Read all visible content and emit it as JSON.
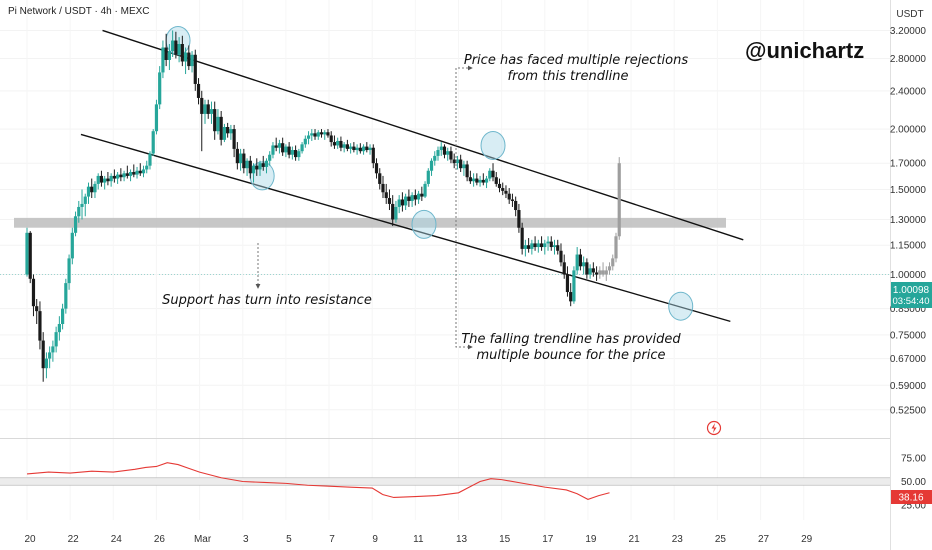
{
  "header": {
    "title": "Pi Network / USDT · 4h · MEXC"
  },
  "watermark": "@unichartz",
  "annotations": {
    "rejections_line1": "Price has faced multiple rejections",
    "rejections_line2": "from this trendline",
    "support": "Support has turn into resistance",
    "bounce_line1": "The falling trendline has provided",
    "bounce_line2": "multiple bounce for the price"
  },
  "colors": {
    "up": "#26a69a",
    "down": "#1a1a1a",
    "projection": "#9e9e9e",
    "rsi_line": "#e53935",
    "zone": "#bdbdbd",
    "circle": "#a8d8e6",
    "price_badge": "#26a69a",
    "rsi_badge": "#e53935"
  },
  "chart_data": {
    "type": "candlestick",
    "title": "Pi Network / USDT · 4h · MEXC",
    "y_axis": {
      "unit": "USDT",
      "scale": "log",
      "ticks": [
        "3.20000",
        "2.80000",
        "2.40000",
        "2.00000",
        "1.70000",
        "1.50000",
        "1.30000",
        "1.15000",
        "1.00000",
        "0.85000",
        "0.75000",
        "0.67000",
        "0.59000",
        "0.52500"
      ],
      "range": [
        0.5,
        3.3
      ]
    },
    "x_axis": {
      "ticks": [
        "20",
        "22",
        "24",
        "26",
        "Mar",
        "3",
        "5",
        "7",
        "9",
        "11",
        "13",
        "15",
        "17",
        "19",
        "21",
        "23",
        "25",
        "27",
        "29"
      ],
      "range": [
        0,
        40
      ]
    },
    "current_price": {
      "value": "1.00098",
      "countdown": "03:54:40"
    },
    "support_resistance_zone": [
      1.25,
      1.31
    ],
    "trendlines": [
      {
        "name": "upper",
        "from": [
          3.5,
          3.2
        ],
        "to": [
          33.2,
          1.18
        ]
      },
      {
        "name": "lower",
        "from": [
          2.5,
          1.95
        ],
        "to": [
          32.6,
          0.8
        ]
      }
    ],
    "touch_points": [
      {
        "t": 7.0,
        "price": 3.05
      },
      {
        "t": 10.9,
        "price": 1.6
      },
      {
        "t": 18.4,
        "price": 1.27
      },
      {
        "t": 21.6,
        "price": 1.85
      },
      {
        "t": 30.3,
        "price": 0.86
      }
    ],
    "candles_ohlc": [
      [
        0.0,
        1.0,
        1.25,
        0.99,
        1.22
      ],
      [
        0.15,
        1.22,
        1.23,
        0.96,
        0.98
      ],
      [
        0.3,
        0.98,
        1.0,
        0.82,
        0.86
      ],
      [
        0.45,
        0.86,
        0.89,
        0.79,
        0.84
      ],
      [
        0.6,
        0.84,
        0.88,
        0.7,
        0.73
      ],
      [
        0.75,
        0.73,
        0.76,
        0.6,
        0.64
      ],
      [
        0.9,
        0.64,
        0.69,
        0.61,
        0.67
      ],
      [
        1.05,
        0.67,
        0.71,
        0.64,
        0.69
      ],
      [
        1.2,
        0.69,
        0.73,
        0.66,
        0.71
      ],
      [
        1.35,
        0.71,
        0.78,
        0.69,
        0.76
      ],
      [
        1.5,
        0.76,
        0.82,
        0.73,
        0.79
      ],
      [
        1.65,
        0.79,
        0.87,
        0.77,
        0.85
      ],
      [
        1.8,
        0.85,
        0.98,
        0.83,
        0.96
      ],
      [
        1.95,
        0.96,
        1.1,
        0.93,
        1.08
      ],
      [
        2.1,
        1.08,
        1.25,
        1.05,
        1.22
      ],
      [
        2.25,
        1.22,
        1.35,
        1.2,
        1.32
      ],
      [
        2.4,
        1.32,
        1.42,
        1.28,
        1.38
      ],
      [
        2.55,
        1.38,
        1.5,
        1.3,
        1.4
      ],
      [
        2.7,
        1.4,
        1.47,
        1.32,
        1.45
      ],
      [
        2.85,
        1.45,
        1.55,
        1.4,
        1.52
      ],
      [
        3.0,
        1.52,
        1.58,
        1.44,
        1.48
      ],
      [
        3.15,
        1.48,
        1.56,
        1.44,
        1.54
      ],
      [
        3.3,
        1.54,
        1.62,
        1.5,
        1.6
      ],
      [
        3.45,
        1.6,
        1.64,
        1.52,
        1.55
      ],
      [
        3.6,
        1.55,
        1.6,
        1.5,
        1.58
      ],
      [
        3.75,
        1.58,
        1.63,
        1.53,
        1.56
      ],
      [
        3.9,
        1.56,
        1.62,
        1.52,
        1.6
      ],
      [
        4.05,
        1.6,
        1.65,
        1.55,
        1.58
      ],
      [
        4.2,
        1.58,
        1.63,
        1.54,
        1.61
      ],
      [
        4.35,
        1.61,
        1.66,
        1.56,
        1.59
      ],
      [
        4.5,
        1.59,
        1.64,
        1.56,
        1.62
      ],
      [
        4.65,
        1.62,
        1.68,
        1.58,
        1.6
      ],
      [
        4.8,
        1.6,
        1.65,
        1.56,
        1.63
      ],
      [
        4.95,
        1.63,
        1.69,
        1.59,
        1.61
      ],
      [
        5.1,
        1.61,
        1.67,
        1.58,
        1.64
      ],
      [
        5.25,
        1.64,
        1.7,
        1.6,
        1.62
      ],
      [
        5.4,
        1.62,
        1.68,
        1.59,
        1.65
      ],
      [
        5.55,
        1.65,
        1.72,
        1.62,
        1.68
      ],
      [
        5.7,
        1.68,
        1.8,
        1.65,
        1.78
      ],
      [
        5.85,
        1.78,
        2.0,
        1.76,
        1.98
      ],
      [
        6.0,
        1.98,
        2.3,
        1.95,
        2.25
      ],
      [
        6.15,
        2.25,
        2.7,
        2.2,
        2.62
      ],
      [
        6.3,
        2.62,
        3.05,
        2.55,
        2.95
      ],
      [
        6.45,
        2.95,
        3.15,
        2.7,
        2.78
      ],
      [
        6.6,
        2.78,
        3.0,
        2.65,
        2.9
      ],
      [
        6.75,
        2.9,
        3.2,
        2.82,
        3.05
      ],
      [
        6.9,
        3.05,
        3.18,
        2.8,
        2.85
      ],
      [
        7.05,
        2.85,
        3.1,
        2.75,
        3.0
      ],
      [
        7.2,
        3.0,
        3.12,
        2.7,
        2.76
      ],
      [
        7.35,
        2.76,
        2.95,
        2.6,
        2.88
      ],
      [
        7.5,
        2.88,
        2.98,
        2.65,
        2.7
      ],
      [
        7.65,
        2.7,
        2.9,
        2.62,
        2.85
      ],
      [
        7.8,
        2.85,
        2.92,
        2.4,
        2.48
      ],
      [
        7.95,
        2.48,
        2.55,
        2.25,
        2.32
      ],
      [
        8.1,
        2.32,
        2.4,
        1.8,
        2.15
      ],
      [
        8.25,
        2.15,
        2.3,
        2.05,
        2.25
      ],
      [
        8.4,
        2.25,
        2.3,
        2.1,
        2.15
      ],
      [
        8.55,
        2.15,
        2.28,
        2.05,
        2.2
      ],
      [
        8.7,
        2.2,
        2.28,
        1.9,
        1.98
      ],
      [
        8.85,
        1.98,
        2.2,
        1.95,
        2.12
      ],
      [
        9.0,
        2.12,
        2.18,
        1.85,
        1.9
      ],
      [
        9.15,
        1.9,
        2.05,
        1.88,
        2.02
      ],
      [
        9.3,
        2.02,
        2.06,
        1.92,
        1.96
      ],
      [
        9.45,
        1.96,
        2.04,
        1.9,
        2.0
      ],
      [
        9.6,
        2.0,
        2.04,
        1.75,
        1.82
      ],
      [
        9.75,
        1.82,
        1.88,
        1.65,
        1.7
      ],
      [
        9.9,
        1.7,
        1.82,
        1.64,
        1.78
      ],
      [
        10.05,
        1.78,
        1.82,
        1.62,
        1.66
      ],
      [
        10.2,
        1.66,
        1.74,
        1.6,
        1.72
      ],
      [
        10.35,
        1.72,
        1.76,
        1.58,
        1.62
      ],
      [
        10.5,
        1.62,
        1.7,
        1.55,
        1.68
      ],
      [
        10.65,
        1.68,
        1.74,
        1.6,
        1.65
      ],
      [
        10.8,
        1.65,
        1.72,
        1.6,
        1.7
      ],
      [
        10.95,
        1.7,
        1.76,
        1.64,
        1.67
      ],
      [
        11.1,
        1.67,
        1.74,
        1.62,
        1.72
      ],
      [
        11.25,
        1.72,
        1.8,
        1.68,
        1.77
      ],
      [
        11.4,
        1.77,
        1.88,
        1.74,
        1.85
      ],
      [
        11.55,
        1.85,
        1.92,
        1.8,
        1.83
      ],
      [
        11.7,
        1.83,
        1.9,
        1.78,
        1.87
      ],
      [
        11.85,
        1.87,
        1.92,
        1.76,
        1.79
      ],
      [
        12.0,
        1.79,
        1.86,
        1.75,
        1.84
      ],
      [
        12.15,
        1.84,
        1.88,
        1.74,
        1.77
      ],
      [
        12.3,
        1.77,
        1.84,
        1.73,
        1.81
      ],
      [
        12.45,
        1.81,
        1.85,
        1.72,
        1.75
      ],
      [
        12.6,
        1.75,
        1.82,
        1.72,
        1.8
      ],
      [
        12.75,
        1.8,
        1.88,
        1.78,
        1.86
      ],
      [
        12.9,
        1.86,
        1.94,
        1.83,
        1.91
      ],
      [
        13.05,
        1.91,
        1.98,
        1.86,
        1.94
      ],
      [
        13.2,
        1.94,
        2.0,
        1.89,
        1.96
      ],
      [
        13.35,
        1.96,
        2.0,
        1.9,
        1.93
      ],
      [
        13.5,
        1.93,
        1.99,
        1.9,
        1.97
      ],
      [
        13.65,
        1.97,
        2.0,
        1.92,
        1.95
      ],
      [
        13.8,
        1.95,
        1.99,
        1.9,
        1.97
      ],
      [
        13.95,
        1.97,
        2.0,
        1.92,
        1.94
      ],
      [
        14.1,
        1.94,
        1.98,
        1.84,
        1.88
      ],
      [
        14.25,
        1.88,
        1.94,
        1.82,
        1.85
      ],
      [
        14.4,
        1.85,
        1.92,
        1.82,
        1.89
      ],
      [
        14.55,
        1.89,
        1.93,
        1.8,
        1.83
      ],
      [
        14.7,
        1.83,
        1.88,
        1.79,
        1.86
      ],
      [
        14.85,
        1.86,
        1.9,
        1.8,
        1.82
      ],
      [
        15.0,
        1.82,
        1.87,
        1.78,
        1.84
      ],
      [
        15.15,
        1.84,
        1.88,
        1.79,
        1.81
      ],
      [
        15.3,
        1.81,
        1.86,
        1.77,
        1.83
      ],
      [
        15.45,
        1.83,
        1.87,
        1.78,
        1.8
      ],
      [
        15.6,
        1.8,
        1.86,
        1.77,
        1.84
      ],
      [
        15.75,
        1.84,
        1.88,
        1.79,
        1.81
      ],
      [
        15.9,
        1.81,
        1.86,
        1.77,
        1.83
      ],
      [
        16.05,
        1.83,
        1.86,
        1.66,
        1.7
      ],
      [
        16.2,
        1.7,
        1.74,
        1.58,
        1.62
      ],
      [
        16.35,
        1.62,
        1.66,
        1.5,
        1.54
      ],
      [
        16.5,
        1.54,
        1.6,
        1.44,
        1.48
      ],
      [
        16.65,
        1.48,
        1.54,
        1.4,
        1.44
      ],
      [
        16.8,
        1.44,
        1.5,
        1.36,
        1.4
      ],
      [
        16.95,
        1.4,
        1.46,
        1.26,
        1.3
      ],
      [
        17.1,
        1.3,
        1.42,
        1.28,
        1.38
      ],
      [
        17.25,
        1.38,
        1.46,
        1.34,
        1.43
      ],
      [
        17.4,
        1.43,
        1.48,
        1.35,
        1.39
      ],
      [
        17.55,
        1.39,
        1.47,
        1.36,
        1.45
      ],
      [
        17.7,
        1.45,
        1.5,
        1.38,
        1.42
      ],
      [
        17.85,
        1.42,
        1.48,
        1.38,
        1.46
      ],
      [
        18.0,
        1.46,
        1.5,
        1.39,
        1.43
      ],
      [
        18.15,
        1.43,
        1.49,
        1.4,
        1.47
      ],
      [
        18.3,
        1.47,
        1.52,
        1.42,
        1.45
      ],
      [
        18.45,
        1.45,
        1.56,
        1.44,
        1.54
      ],
      [
        18.6,
        1.54,
        1.66,
        1.52,
        1.64
      ],
      [
        18.75,
        1.64,
        1.74,
        1.6,
        1.72
      ],
      [
        18.9,
        1.72,
        1.8,
        1.68,
        1.76
      ],
      [
        19.05,
        1.76,
        1.84,
        1.72,
        1.81
      ],
      [
        19.2,
        1.81,
        1.88,
        1.76,
        1.84
      ],
      [
        19.35,
        1.84,
        1.86,
        1.74,
        1.77
      ],
      [
        19.5,
        1.77,
        1.83,
        1.72,
        1.8
      ],
      [
        19.65,
        1.8,
        1.84,
        1.7,
        1.73
      ],
      [
        19.8,
        1.73,
        1.78,
        1.66,
        1.7
      ],
      [
        19.95,
        1.7,
        1.76,
        1.65,
        1.73
      ],
      [
        20.1,
        1.73,
        1.77,
        1.63,
        1.66
      ],
      [
        20.25,
        1.66,
        1.72,
        1.6,
        1.69
      ],
      [
        20.4,
        1.69,
        1.72,
        1.56,
        1.59
      ],
      [
        20.55,
        1.59,
        1.64,
        1.54,
        1.56
      ],
      [
        20.7,
        1.56,
        1.62,
        1.52,
        1.58
      ],
      [
        20.85,
        1.58,
        1.62,
        1.53,
        1.55
      ],
      [
        21.0,
        1.55,
        1.6,
        1.52,
        1.57
      ],
      [
        21.15,
        1.57,
        1.62,
        1.53,
        1.55
      ],
      [
        21.3,
        1.55,
        1.6,
        1.51,
        1.58
      ],
      [
        21.45,
        1.58,
        1.66,
        1.56,
        1.64
      ],
      [
        21.6,
        1.64,
        1.7,
        1.56,
        1.59
      ],
      [
        21.75,
        1.59,
        1.63,
        1.52,
        1.54
      ],
      [
        21.9,
        1.54,
        1.58,
        1.48,
        1.51
      ],
      [
        22.05,
        1.51,
        1.55,
        1.46,
        1.49
      ],
      [
        22.2,
        1.49,
        1.53,
        1.44,
        1.47
      ],
      [
        22.35,
        1.47,
        1.51,
        1.4,
        1.43
      ],
      [
        22.5,
        1.43,
        1.47,
        1.38,
        1.42
      ],
      [
        22.65,
        1.42,
        1.45,
        1.32,
        1.36
      ],
      [
        22.8,
        1.36,
        1.4,
        1.22,
        1.25
      ],
      [
        22.95,
        1.25,
        1.28,
        1.1,
        1.13
      ],
      [
        23.1,
        1.13,
        1.18,
        1.09,
        1.15
      ],
      [
        23.25,
        1.15,
        1.19,
        1.11,
        1.13
      ],
      [
        23.4,
        1.13,
        1.18,
        1.1,
        1.16
      ],
      [
        23.55,
        1.16,
        1.2,
        1.12,
        1.14
      ],
      [
        23.7,
        1.14,
        1.18,
        1.11,
        1.16
      ],
      [
        23.85,
        1.16,
        1.2,
        1.12,
        1.14
      ],
      [
        24.0,
        1.14,
        1.18,
        1.1,
        1.16
      ],
      [
        24.15,
        1.16,
        1.2,
        1.12,
        1.17
      ],
      [
        24.3,
        1.17,
        1.2,
        1.12,
        1.14
      ],
      [
        24.45,
        1.14,
        1.18,
        1.1,
        1.15
      ],
      [
        24.6,
        1.15,
        1.18,
        1.1,
        1.12
      ],
      [
        24.75,
        1.12,
        1.16,
        1.04,
        1.06
      ],
      [
        24.9,
        1.06,
        1.1,
        0.98,
        1.0
      ],
      [
        25.05,
        1.0,
        1.04,
        0.9,
        0.92
      ],
      [
        25.2,
        0.92,
        0.96,
        0.86,
        0.88
      ],
      [
        25.35,
        0.88,
        1.04,
        0.87,
        1.02
      ],
      [
        25.5,
        1.02,
        1.14,
        1.0,
        1.1
      ],
      [
        25.65,
        1.1,
        1.13,
        1.02,
        1.04
      ],
      [
        25.8,
        1.04,
        1.09,
        1.0,
        1.06
      ],
      [
        25.95,
        1.06,
        1.08,
        0.98,
        1.0
      ],
      [
        26.1,
        1.0,
        1.05,
        0.98,
        1.03
      ],
      [
        26.25,
        1.03,
        1.06,
        0.99,
        1.01
      ],
      [
        26.4,
        1.01,
        1.04,
        0.97,
        1.0
      ]
    ],
    "projection_ohlc": [
      [
        26.55,
        1.0,
        1.04,
        0.98,
        1.02
      ],
      [
        26.7,
        1.02,
        1.06,
        0.99,
        1.0
      ],
      [
        26.85,
        1.0,
        1.04,
        0.97,
        1.02
      ],
      [
        27.0,
        1.02,
        1.06,
        1.0,
        1.04
      ],
      [
        27.15,
        1.04,
        1.1,
        1.02,
        1.08
      ],
      [
        27.3,
        1.08,
        1.22,
        1.06,
        1.2
      ],
      [
        27.45,
        1.2,
        1.75,
        1.18,
        1.7
      ]
    ],
    "rsi": {
      "scale_ticks": [
        "75.00",
        "50.00",
        "25.00"
      ],
      "current_value": "38.16",
      "band": [
        46,
        54
      ],
      "t": [
        0,
        1,
        2,
        3,
        4,
        5,
        5.5,
        6,
        6.5,
        7,
        7.5,
        8,
        9,
        10,
        11,
        12,
        13,
        14,
        15,
        16,
        16.5,
        17,
        18,
        19,
        20,
        20.5,
        21,
        21.5,
        22,
        23,
        24,
        25,
        25.5,
        26,
        26.5,
        27
      ],
      "values": [
        58,
        60,
        59,
        61,
        60,
        63,
        65,
        66,
        70,
        68,
        64,
        60,
        54,
        50,
        49,
        48,
        46,
        45,
        44,
        43,
        36,
        33,
        34,
        35,
        38,
        44,
        50,
        53,
        52,
        48,
        44,
        41,
        37,
        31,
        35,
        38
      ]
    }
  }
}
